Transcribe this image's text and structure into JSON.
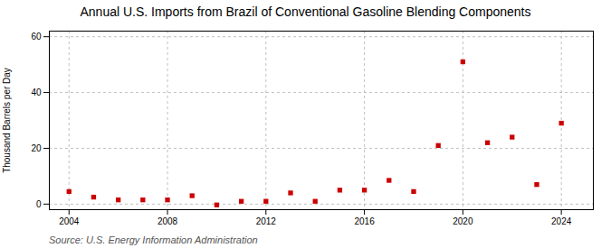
{
  "chart_data": {
    "type": "scatter",
    "title": "Annual U.S. Imports from Brazil of Conventional Gasoline Blending Components",
    "ylabel": "Thousand Barrels per Day",
    "annotation": "Source: U.S. Energy Information Administration",
    "x": [
      2004,
      2005,
      2006,
      2007,
      2008,
      2009,
      2010,
      2011,
      2012,
      2013,
      2014,
      2015,
      2016,
      2017,
      2018,
      2019,
      2020,
      2021,
      2022,
      2023,
      2024
    ],
    "values": [
      4.5,
      2.5,
      1.5,
      1.5,
      1.5,
      3.0,
      -0.3,
      1.0,
      1.0,
      4.0,
      1.0,
      5.0,
      5.0,
      8.5,
      4.5,
      21.0,
      51.0,
      22.0,
      24.0,
      7.0,
      29.0
    ],
    "color": "#cc0000",
    "marker": "square",
    "xlim": [
      2003.2,
      2025.3
    ],
    "ylim": [
      -2,
      62
    ],
    "xticks": [
      2004,
      2008,
      2012,
      2016,
      2020,
      2024
    ],
    "yticks": [
      0,
      20,
      40,
      60
    ],
    "grid": true
  }
}
